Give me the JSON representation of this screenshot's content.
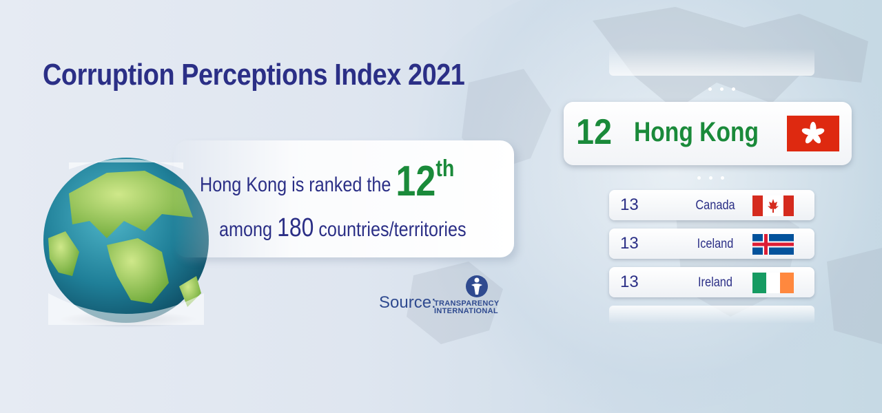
{
  "title": "Corruption Perceptions Index 2021",
  "ranking": {
    "line1_text": "Hong Kong is ranked the",
    "rank_number": "12",
    "rank_suffix": "th",
    "line2_prefix": "among",
    "line2_count": "180",
    "line2_suffix": "countries/territories"
  },
  "source": {
    "label": "Source:",
    "org_line1": "TRANSPARENCY",
    "org_line2": "INTERNATIONAL"
  },
  "highlight": {
    "rank": "12",
    "name": "Hong Kong",
    "flag_icon": "hong-kong-flag-icon"
  },
  "rows": [
    {
      "rank": "13",
      "name": "Canada",
      "flag_icon": "canada-flag-icon"
    },
    {
      "rank": "13",
      "name": "Iceland",
      "flag_icon": "iceland-flag-icon"
    },
    {
      "rank": "13",
      "name": "Ireland",
      "flag_icon": "ireland-flag-icon"
    }
  ],
  "colors": {
    "title": "#2b2f86",
    "accent_green": "#1a8a3a",
    "hk_red": "#de2910"
  }
}
